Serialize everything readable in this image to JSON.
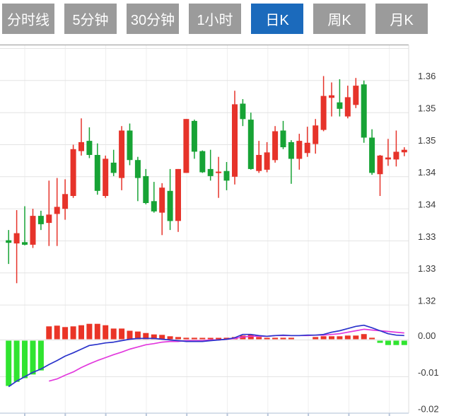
{
  "tabs": [
    {
      "label": "分时线",
      "active": false
    },
    {
      "label": "5分钟",
      "active": false
    },
    {
      "label": "30分钟",
      "active": false
    },
    {
      "label": "1小时",
      "active": false
    },
    {
      "label": "日K",
      "active": true
    },
    {
      "label": "周K",
      "active": false
    },
    {
      "label": "月K",
      "active": false
    }
  ],
  "colors": {
    "tab_bg": "#9b9b9b",
    "tab_active_bg": "#1b6abc",
    "tab_text": "#ffffff",
    "up": "#e6332a",
    "down": "#17a335",
    "hist_up": "#ea3426",
    "hist_down": "#30e430",
    "dif_line": "#2a33cb",
    "dea_line": "#e239dd",
    "grid": "#e4e4e4",
    "top_border": "#a9a9a9",
    "right_border": "#dcdcdc",
    "axis_text": "#3a3a3a",
    "x_axis_line": "#c8d3e2",
    "x_axis_tick": "#b9c6da",
    "zero_line": "#e0e0e0",
    "v_grid": "#efefef"
  },
  "chart_data": {
    "type": "candlestick_with_macd",
    "title": "",
    "price_axis": {
      "gridline_values": [
        1.365,
        1.36,
        1.355,
        1.35,
        1.345,
        1.34,
        1.335,
        1.33,
        1.325
      ],
      "labels": [
        {
          "value": 1.36,
          "text": "1.36"
        },
        {
          "value": 1.355,
          "text": "1.35"
        },
        {
          "value": 1.35,
          "text": "1.35"
        },
        {
          "value": 1.345,
          "text": "1.34"
        },
        {
          "value": 1.34,
          "text": "1.34"
        },
        {
          "value": 1.335,
          "text": "1.33"
        },
        {
          "value": 1.33,
          "text": "1.33"
        },
        {
          "value": 1.325,
          "text": "1.32"
        }
      ],
      "range": [
        1.3225,
        1.365
      ]
    },
    "macd_axis": {
      "labels": [
        {
          "value": 0,
          "text": "0.00"
        },
        {
          "value": -0.01,
          "text": "-0.01"
        },
        {
          "value": -0.02,
          "text": "-0.02"
        }
      ],
      "range": [
        -0.02,
        0.005
      ]
    },
    "x_ticks": 10,
    "candles": [
      [
        1.3351,
        1.3367,
        1.3314,
        1.3347
      ],
      [
        1.3346,
        1.3398,
        1.3284,
        1.3362
      ],
      [
        1.3348,
        1.3404,
        1.3343,
        1.3344
      ],
      [
        1.3344,
        1.34,
        1.3339,
        1.3389
      ],
      [
        1.3389,
        1.3397,
        1.3367,
        1.3376
      ],
      [
        1.3378,
        1.3444,
        1.3342,
        1.3391
      ],
      [
        1.3392,
        1.3448,
        1.3342,
        1.3403
      ],
      [
        1.34,
        1.3446,
        1.3383,
        1.3423
      ],
      [
        1.342,
        1.35,
        1.3417,
        1.3493
      ],
      [
        1.349,
        1.3541,
        1.3483,
        1.3504
      ],
      [
        1.3506,
        1.3527,
        1.3479,
        1.3484
      ],
      [
        1.3484,
        1.3502,
        1.3422,
        1.3428
      ],
      [
        1.342,
        1.3483,
        1.3417,
        1.3478
      ],
      [
        1.3472,
        1.3492,
        1.3451,
        1.3456
      ],
      [
        1.3448,
        1.3529,
        1.3429,
        1.3522
      ],
      [
        1.3522,
        1.3533,
        1.3468,
        1.3476
      ],
      [
        1.3476,
        1.3481,
        1.3412,
        1.3448
      ],
      [
        1.3451,
        1.3462,
        1.3407,
        1.3409
      ],
      [
        1.3412,
        1.3442,
        1.3394,
        1.3396
      ],
      [
        1.3394,
        1.344,
        1.3359,
        1.3433
      ],
      [
        1.3428,
        1.3462,
        1.3367,
        1.3381
      ],
      [
        1.3381,
        1.3462,
        1.3364,
        1.3462
      ],
      [
        1.3456,
        1.354,
        1.3456,
        1.354
      ],
      [
        1.3537,
        1.3539,
        1.3478,
        1.3489
      ],
      [
        1.349,
        1.3491,
        1.3456,
        1.3457
      ],
      [
        1.3462,
        1.3492,
        1.3444,
        1.3451
      ],
      [
        1.3456,
        1.3481,
        1.3417,
        1.3458
      ],
      [
        1.3459,
        1.3473,
        1.3429,
        1.3444
      ],
      [
        1.345,
        1.3584,
        1.3438,
        1.3563
      ],
      [
        1.3564,
        1.3571,
        1.3529,
        1.354
      ],
      [
        1.3539,
        1.355,
        1.3461,
        1.3462
      ],
      [
        1.3459,
        1.3506,
        1.3456,
        1.3484
      ],
      [
        1.3461,
        1.3504,
        1.3457,
        1.3488
      ],
      [
        1.3476,
        1.3529,
        1.3472,
        1.3521
      ],
      [
        1.3522,
        1.3537,
        1.3493,
        1.3496
      ],
      [
        1.3504,
        1.3507,
        1.3439,
        1.3478
      ],
      [
        1.3478,
        1.3517,
        1.3461,
        1.3506
      ],
      [
        1.3487,
        1.3528,
        1.3481,
        1.3503
      ],
      [
        1.3501,
        1.354,
        1.3486,
        1.353
      ],
      [
        1.3523,
        1.3607,
        1.3521,
        1.3576
      ],
      [
        1.3573,
        1.3597,
        1.3544,
        1.3577
      ],
      [
        1.3566,
        1.3602,
        1.3544,
        1.3556
      ],
      [
        1.3544,
        1.3592,
        1.3541,
        1.3574
      ],
      [
        1.3562,
        1.3604,
        1.3557,
        1.3592
      ],
      [
        1.3594,
        1.36,
        1.3503,
        1.3511
      ],
      [
        1.3511,
        1.3524,
        1.3453,
        1.3456
      ],
      [
        1.3454,
        1.3484,
        1.342,
        1.3483
      ],
      [
        1.3477,
        1.3509,
        1.3467,
        1.348
      ],
      [
        1.3477,
        1.3522,
        1.3466,
        1.3489
      ],
      [
        1.3488,
        1.3496,
        1.3482,
        1.3492
      ]
    ],
    "macd": {
      "histogram": [
        -0.0123,
        -0.0112,
        -0.0102,
        -0.0092,
        -0.0081,
        0.0035,
        0.0037,
        0.0033,
        0.0035,
        0.0038,
        0.0042,
        0.0042,
        0.0038,
        0.0029,
        0.0029,
        0.0023,
        0.0021,
        0.0017,
        0.0013,
        0.0012,
        0.0008,
        0.0006,
        0.0004,
        0.0004,
        0.0002,
        0.0002,
        0.0002,
        0.0004,
        0.0006,
        0.001,
        0.0012,
        0.0006,
        0.0004,
        0.0004,
        0.0004,
        0.0004,
        0.0001,
        0.0001,
        0.0006,
        0.0008,
        0.0008,
        0.0008,
        0.001,
        0.001,
        0.0014,
        0.0004,
        -0.0006,
        -0.0012,
        -0.0012,
        -0.0012
      ],
      "dif": [
        -0.0127,
        -0.0112,
        -0.01,
        -0.0088,
        -0.0079,
        -0.0067,
        -0.0056,
        -0.0044,
        -0.0035,
        -0.0025,
        -0.0015,
        -0.0012,
        -0.0008,
        -0.0006,
        -0.0002,
        0.0002,
        0.0004,
        0.0004,
        0.0004,
        0.0002,
        0,
        -0.0002,
        -0.0004,
        -0.0004,
        -0.0004,
        -0.0002,
        0,
        0.0002,
        0.0006,
        0.0015,
        0.0015,
        0.0012,
        0.001,
        0.0012,
        0.0013,
        0.0012,
        0.0012,
        0.0013,
        0.0013,
        0.0015,
        0.0021,
        0.0025,
        0.0031,
        0.0037,
        0.004,
        0.0033,
        0.0025,
        0.0017,
        0.0013,
        0.0012
      ],
      "dea_start_index": 5,
      "dea": [
        -0.0112,
        -0.0106,
        -0.0096,
        -0.0087,
        -0.0075,
        -0.0065,
        -0.0056,
        -0.0048,
        -0.004,
        -0.0033,
        -0.0025,
        -0.0019,
        -0.0013,
        -0.001,
        -0.0006,
        -0.0004,
        -0.0004,
        -0.0002,
        -0.0002,
        -0.0002,
        0,
        0,
        0.0002,
        0.0004,
        0.0008,
        0.001,
        0.001,
        0.001,
        0.0012,
        0.0012,
        0.0012,
        0.0012,
        0.0012,
        0.0013,
        0.0013,
        0.0015,
        0.0017,
        0.0021,
        0.0025,
        0.0029,
        0.0027,
        0.0025,
        0.0023,
        0.0021,
        0.0019
      ]
    }
  }
}
